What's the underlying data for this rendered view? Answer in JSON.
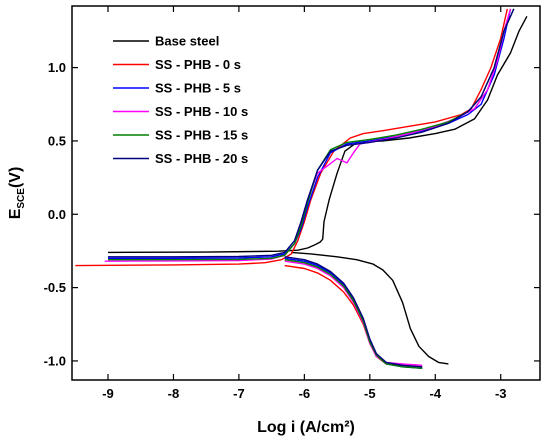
{
  "chart_data": {
    "type": "line",
    "xlabel": "Log i (A/cm²)",
    "ylabel": "E_SCE(V)",
    "ylabel_main": "E",
    "ylabel_sub": "SCE",
    "ylabel_tail": "(V)",
    "xlim": [
      -9.55,
      -2.4
    ],
    "ylim": [
      -1.13,
      1.42
    ],
    "xticks": [
      -9,
      -8,
      -7,
      -6,
      -5,
      -4,
      -3
    ],
    "yticks": [
      -1.0,
      -0.5,
      0.0,
      0.5,
      1.0
    ],
    "xtick_labels": [
      "-9",
      "-8",
      "-7",
      "-6",
      "-5",
      "-4",
      "-3"
    ],
    "ytick_labels": [
      "-1.0",
      "-0.5",
      "0.0",
      "0.5",
      "1.0"
    ],
    "legend_position": "top-left",
    "series": [
      {
        "name": "Base steel",
        "color": "#000000",
        "anodic": [
          [
            -9.0,
            -0.26
          ],
          [
            -7.5,
            -0.258
          ],
          [
            -6.4,
            -0.252
          ],
          [
            -6.1,
            -0.245
          ],
          [
            -5.95,
            -0.23
          ],
          [
            -5.85,
            -0.21
          ],
          [
            -5.76,
            -0.19
          ],
          [
            -5.72,
            -0.17
          ],
          [
            -5.7,
            -0.05
          ],
          [
            -5.62,
            0.1
          ],
          [
            -5.5,
            0.28
          ],
          [
            -5.38,
            0.43
          ],
          [
            -5.2,
            0.49
          ],
          [
            -4.8,
            0.5
          ],
          [
            -4.4,
            0.52
          ],
          [
            -4.0,
            0.55
          ],
          [
            -3.7,
            0.58
          ],
          [
            -3.4,
            0.65
          ],
          [
            -3.2,
            0.78
          ],
          [
            -3.05,
            0.95
          ],
          [
            -2.85,
            1.1
          ],
          [
            -2.72,
            1.25
          ],
          [
            -2.6,
            1.35
          ]
        ],
        "cathodic": [
          [
            -6.2,
            -0.26
          ],
          [
            -5.9,
            -0.27
          ],
          [
            -5.5,
            -0.29
          ],
          [
            -5.2,
            -0.31
          ],
          [
            -4.95,
            -0.34
          ],
          [
            -4.8,
            -0.38
          ],
          [
            -4.65,
            -0.45
          ],
          [
            -4.5,
            -0.6
          ],
          [
            -4.38,
            -0.78
          ],
          [
            -4.25,
            -0.9
          ],
          [
            -4.1,
            -0.97
          ],
          [
            -3.95,
            -1.01
          ],
          [
            -3.8,
            -1.02
          ]
        ]
      },
      {
        "name": "SS - PHB - 0 s",
        "color": "#ff0000",
        "anodic": [
          [
            -9.5,
            -0.35
          ],
          [
            -8.0,
            -0.345
          ],
          [
            -7.0,
            -0.34
          ],
          [
            -6.6,
            -0.33
          ],
          [
            -6.35,
            -0.31
          ],
          [
            -6.2,
            -0.27
          ],
          [
            -6.1,
            -0.18
          ],
          [
            -6.0,
            -0.05
          ],
          [
            -5.9,
            0.1
          ],
          [
            -5.75,
            0.28
          ],
          [
            -5.55,
            0.43
          ],
          [
            -5.3,
            0.52
          ],
          [
            -5.1,
            0.55
          ],
          [
            -4.8,
            0.57
          ],
          [
            -4.4,
            0.6
          ],
          [
            -4.0,
            0.63
          ],
          [
            -3.6,
            0.68
          ],
          [
            -3.45,
            0.72
          ],
          [
            -3.3,
            0.85
          ],
          [
            -3.15,
            1.0
          ],
          [
            -3.0,
            1.2
          ],
          [
            -2.9,
            1.4
          ]
        ],
        "cathodic": [
          [
            -6.3,
            -0.35
          ],
          [
            -6.0,
            -0.37
          ],
          [
            -5.8,
            -0.4
          ],
          [
            -5.6,
            -0.45
          ],
          [
            -5.4,
            -0.53
          ],
          [
            -5.25,
            -0.62
          ],
          [
            -5.1,
            -0.75
          ],
          [
            -5.0,
            -0.88
          ],
          [
            -4.9,
            -0.97
          ],
          [
            -4.75,
            -1.02
          ],
          [
            -4.5,
            -1.03
          ],
          [
            -4.2,
            -1.04
          ]
        ]
      },
      {
        "name": "SS - PHB - 5 s",
        "color": "#0000ff",
        "anodic": [
          [
            -9.0,
            -0.3
          ],
          [
            -8.0,
            -0.3
          ],
          [
            -7.0,
            -0.298
          ],
          [
            -6.5,
            -0.29
          ],
          [
            -6.3,
            -0.27
          ],
          [
            -6.15,
            -0.2
          ],
          [
            -6.05,
            -0.1
          ],
          [
            -5.95,
            0.05
          ],
          [
            -5.8,
            0.25
          ],
          [
            -5.6,
            0.42
          ],
          [
            -5.35,
            0.48
          ],
          [
            -5.0,
            0.5
          ],
          [
            -4.6,
            0.53
          ],
          [
            -4.2,
            0.57
          ],
          [
            -3.8,
            0.62
          ],
          [
            -3.5,
            0.68
          ],
          [
            -3.3,
            0.75
          ],
          [
            -3.1,
            0.95
          ],
          [
            -2.95,
            1.2
          ],
          [
            -2.85,
            1.4
          ]
        ],
        "cathodic": [
          [
            -6.3,
            -0.3
          ],
          [
            -6.0,
            -0.32
          ],
          [
            -5.8,
            -0.35
          ],
          [
            -5.6,
            -0.4
          ],
          [
            -5.4,
            -0.48
          ],
          [
            -5.25,
            -0.58
          ],
          [
            -5.1,
            -0.72
          ],
          [
            -5.0,
            -0.86
          ],
          [
            -4.9,
            -0.96
          ],
          [
            -4.75,
            -1.02
          ],
          [
            -4.5,
            -1.04
          ],
          [
            -4.2,
            -1.05
          ]
        ]
      },
      {
        "name": "SS - PHB - 10 s",
        "color": "#ff00ff",
        "anodic": [
          [
            -9.05,
            -0.32
          ],
          [
            -8.0,
            -0.318
          ],
          [
            -7.0,
            -0.315
          ],
          [
            -6.5,
            -0.305
          ],
          [
            -6.3,
            -0.28
          ],
          [
            -6.15,
            -0.2
          ],
          [
            -6.05,
            -0.05
          ],
          [
            -5.95,
            0.1
          ],
          [
            -5.8,
            0.28
          ],
          [
            -5.65,
            0.33
          ],
          [
            -5.5,
            0.38
          ],
          [
            -5.35,
            0.35
          ],
          [
            -5.25,
            0.42
          ],
          [
            -5.15,
            0.48
          ],
          [
            -4.8,
            0.51
          ],
          [
            -4.4,
            0.55
          ],
          [
            -4.0,
            0.6
          ],
          [
            -3.7,
            0.65
          ],
          [
            -3.4,
            0.72
          ],
          [
            -3.2,
            0.85
          ],
          [
            -3.05,
            1.05
          ],
          [
            -2.95,
            1.25
          ],
          [
            -2.85,
            1.4
          ]
        ],
        "cathodic": [
          [
            -6.3,
            -0.32
          ],
          [
            -6.0,
            -0.34
          ],
          [
            -5.8,
            -0.37
          ],
          [
            -5.6,
            -0.42
          ],
          [
            -5.4,
            -0.5
          ],
          [
            -5.25,
            -0.6
          ],
          [
            -5.1,
            -0.74
          ],
          [
            -5.0,
            -0.88
          ],
          [
            -4.9,
            -0.97
          ],
          [
            -4.75,
            -1.01
          ],
          [
            -4.5,
            -1.02
          ],
          [
            -4.2,
            -1.03
          ]
        ]
      },
      {
        "name": "SS - PHB - 15 s",
        "color": "#008000",
        "anodic": [
          [
            -9.0,
            -0.31
          ],
          [
            -8.0,
            -0.31
          ],
          [
            -7.0,
            -0.308
          ],
          [
            -6.5,
            -0.3
          ],
          [
            -6.3,
            -0.28
          ],
          [
            -6.15,
            -0.2
          ],
          [
            -6.05,
            -0.08
          ],
          [
            -5.95,
            0.08
          ],
          [
            -5.8,
            0.3
          ],
          [
            -5.6,
            0.44
          ],
          [
            -5.35,
            0.49
          ],
          [
            -5.0,
            0.51
          ],
          [
            -4.6,
            0.54
          ],
          [
            -4.2,
            0.58
          ],
          [
            -3.8,
            0.63
          ],
          [
            -3.5,
            0.7
          ],
          [
            -3.3,
            0.8
          ],
          [
            -3.1,
            1.0
          ],
          [
            -2.95,
            1.25
          ],
          [
            -2.8,
            1.4
          ]
        ],
        "cathodic": [
          [
            -6.3,
            -0.31
          ],
          [
            -6.0,
            -0.33
          ],
          [
            -5.8,
            -0.36
          ],
          [
            -5.6,
            -0.41
          ],
          [
            -5.4,
            -0.49
          ],
          [
            -5.25,
            -0.59
          ],
          [
            -5.1,
            -0.73
          ],
          [
            -5.0,
            -0.87
          ],
          [
            -4.9,
            -0.96
          ],
          [
            -4.75,
            -1.02
          ],
          [
            -4.5,
            -1.04
          ],
          [
            -4.2,
            -1.05
          ]
        ]
      },
      {
        "name": "SS - PHB - 20 s",
        "color": "#000080",
        "anodic": [
          [
            -9.0,
            -0.29
          ],
          [
            -8.0,
            -0.29
          ],
          [
            -7.0,
            -0.288
          ],
          [
            -6.5,
            -0.28
          ],
          [
            -6.3,
            -0.26
          ],
          [
            -6.15,
            -0.18
          ],
          [
            -6.05,
            -0.05
          ],
          [
            -5.95,
            0.1
          ],
          [
            -5.8,
            0.3
          ],
          [
            -5.6,
            0.43
          ],
          [
            -5.35,
            0.47
          ],
          [
            -5.0,
            0.49
          ],
          [
            -4.6,
            0.52
          ],
          [
            -4.2,
            0.56
          ],
          [
            -3.8,
            0.62
          ],
          [
            -3.5,
            0.7
          ],
          [
            -3.3,
            0.8
          ],
          [
            -3.1,
            1.0
          ],
          [
            -2.95,
            1.25
          ],
          [
            -2.8,
            1.4
          ]
        ],
        "cathodic": [
          [
            -6.3,
            -0.29
          ],
          [
            -6.0,
            -0.31
          ],
          [
            -5.8,
            -0.34
          ],
          [
            -5.6,
            -0.39
          ],
          [
            -5.4,
            -0.47
          ],
          [
            -5.25,
            -0.57
          ],
          [
            -5.1,
            -0.71
          ],
          [
            -5.0,
            -0.85
          ],
          [
            -4.9,
            -0.95
          ],
          [
            -4.75,
            -1.01
          ],
          [
            -4.5,
            -1.03
          ],
          [
            -4.2,
            -1.04
          ]
        ]
      }
    ]
  }
}
